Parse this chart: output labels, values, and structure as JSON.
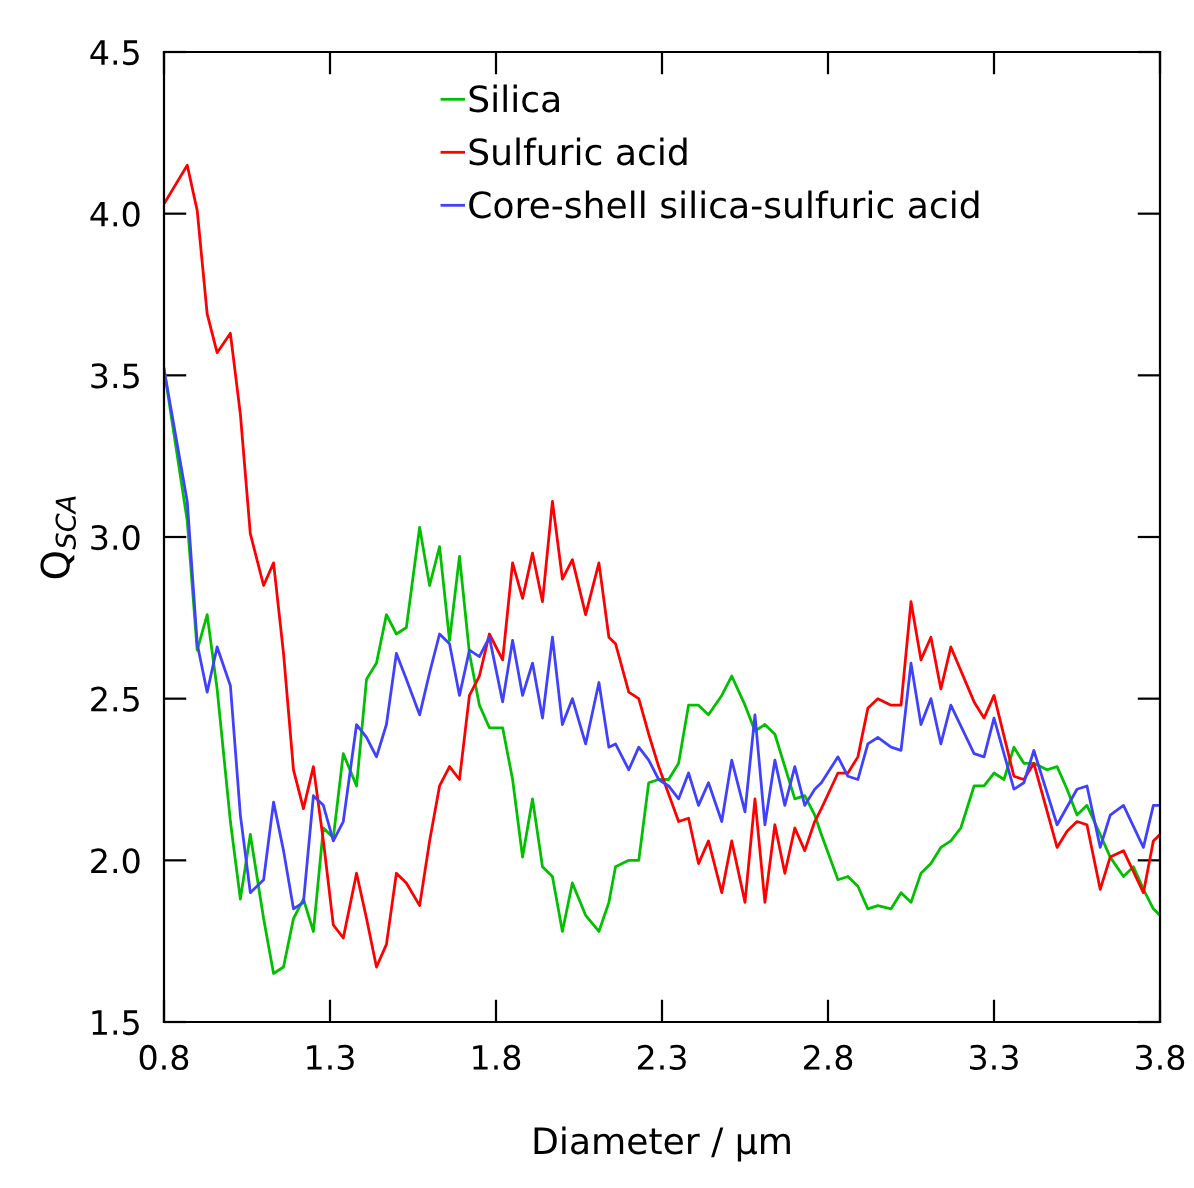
{
  "chart_data": {
    "type": "line",
    "xlabel": "Diameter / µm",
    "ylabel": "Q$_{SCA}$",
    "xlim": [
      0.8,
      3.8
    ],
    "xticks": [
      0.8,
      1.3,
      1.8,
      2.3,
      {
        "value": 2.8,
        "label": "2.8"
      },
      3.3,
      3.8
    ],
    "ylim": [
      1.5,
      4.5
    ],
    "yticks": [
      1.5,
      {
        "value": 2,
        "label": "2.0"
      },
      2.5,
      {
        "value": 3,
        "label": "3.0"
      },
      3.5,
      {
        "value": 4,
        "label": "4.0"
      },
      4.5
    ],
    "grid": false,
    "legend": "top",
    "marker": "none",
    "line_style": "solid",
    "series": [
      {
        "name": "Silica",
        "color": "#00c000",
        "x": [
          0.8,
          0.87,
          0.9,
          0.93,
          0.96,
          1.0,
          1.03,
          1.06,
          1.1,
          1.13,
          1.16,
          1.19,
          1.22,
          1.25,
          1.28,
          1.31,
          1.34,
          1.38,
          1.41,
          1.44,
          1.47,
          1.5,
          1.53,
          1.57,
          1.6,
          1.63,
          1.66,
          1.69,
          1.72,
          1.75,
          1.78,
          1.82,
          1.85,
          1.88,
          1.91,
          1.94,
          1.97,
          2.0,
          2.03,
          2.07,
          2.11,
          2.14,
          2.16,
          2.2,
          2.23,
          2.26,
          2.29,
          2.32,
          2.35,
          2.38,
          2.41,
          2.44,
          2.48,
          2.51,
          2.55,
          2.58,
          2.61,
          2.64,
          2.67,
          2.7,
          2.73,
          2.76,
          2.78,
          2.83,
          2.86,
          2.89,
          2.92,
          2.95,
          2.99,
          3.02,
          3.05,
          3.08,
          3.11,
          3.14,
          3.17,
          3.2,
          3.24,
          3.27,
          3.3,
          3.33,
          3.36,
          3.39,
          3.42,
          3.46,
          3.49,
          3.52,
          3.55,
          3.58,
          3.62,
          3.65,
          3.69,
          3.72,
          3.75,
          3.78,
          3.8
        ],
        "values": [
          3.52,
          3.05,
          2.65,
          2.76,
          2.53,
          2.12,
          1.88,
          2.08,
          1.82,
          1.65,
          1.67,
          1.82,
          1.88,
          1.78,
          2.1,
          2.07,
          2.33,
          2.23,
          2.56,
          2.61,
          2.76,
          2.7,
          2.72,
          3.03,
          2.85,
          2.97,
          2.68,
          2.94,
          2.64,
          2.48,
          2.41,
          2.41,
          2.25,
          2.01,
          2.19,
          1.98,
          1.95,
          1.78,
          1.93,
          1.83,
          1.78,
          1.87,
          1.98,
          2.0,
          2.0,
          2.24,
          2.25,
          2.25,
          2.3,
          2.48,
          2.48,
          2.45,
          2.51,
          2.57,
          2.48,
          2.4,
          2.42,
          2.39,
          2.29,
          2.19,
          2.2,
          2.14,
          2.08,
          1.94,
          1.95,
          1.92,
          1.85,
          1.86,
          1.85,
          1.9,
          1.87,
          1.96,
          1.99,
          2.04,
          2.06,
          2.1,
          2.23,
          2.23,
          2.27,
          2.25,
          2.35,
          2.3,
          2.3,
          2.28,
          2.29,
          2.22,
          2.14,
          2.17,
          2.08,
          2.01,
          1.95,
          1.98,
          1.91,
          1.85,
          1.83
        ]
      },
      {
        "name": "Sulfuric acid",
        "color": "#ff0000",
        "x": [
          0.8,
          0.87,
          0.9,
          0.93,
          0.96,
          1.0,
          1.03,
          1.06,
          1.1,
          1.13,
          1.16,
          1.19,
          1.22,
          1.25,
          1.28,
          1.31,
          1.34,
          1.38,
          1.41,
          1.44,
          1.47,
          1.5,
          1.53,
          1.57,
          1.6,
          1.63,
          1.66,
          1.69,
          1.72,
          1.75,
          1.78,
          1.82,
          1.85,
          1.88,
          1.91,
          1.94,
          1.97,
          2.0,
          2.03,
          2.07,
          2.11,
          2.14,
          2.16,
          2.2,
          2.23,
          2.26,
          2.29,
          2.35,
          2.38,
          2.41,
          2.44,
          2.48,
          2.51,
          2.55,
          2.58,
          2.61,
          2.64,
          2.67,
          2.7,
          2.73,
          2.76,
          2.78,
          2.83,
          2.86,
          2.89,
          2.92,
          2.95,
          2.99,
          3.02,
          3.05,
          3.08,
          3.11,
          3.14,
          3.17,
          3.24,
          3.27,
          3.3,
          3.36,
          3.39,
          3.42,
          3.49,
          3.52,
          3.55,
          3.58,
          3.62,
          3.65,
          3.69,
          3.75,
          3.78,
          3.8
        ],
        "values": [
          4.03,
          4.15,
          4.01,
          3.69,
          3.57,
          3.63,
          3.38,
          3.01,
          2.85,
          2.92,
          2.64,
          2.28,
          2.16,
          2.29,
          2.06,
          1.8,
          1.76,
          1.96,
          1.82,
          1.67,
          1.74,
          1.96,
          1.93,
          1.86,
          2.06,
          2.23,
          2.29,
          2.25,
          2.51,
          2.57,
          2.7,
          2.62,
          2.92,
          2.81,
          2.95,
          2.8,
          3.11,
          2.87,
          2.93,
          2.76,
          2.92,
          2.69,
          2.67,
          2.52,
          2.5,
          2.39,
          2.29,
          2.12,
          2.13,
          1.99,
          2.06,
          1.9,
          2.06,
          1.87,
          2.19,
          1.87,
          2.11,
          1.96,
          2.1,
          2.03,
          2.12,
          2.16,
          2.27,
          2.27,
          2.32,
          2.47,
          2.5,
          2.48,
          2.48,
          2.8,
          2.62,
          2.69,
          2.53,
          2.66,
          2.49,
          2.44,
          2.51,
          2.26,
          2.25,
          2.3,
          2.04,
          2.09,
          2.12,
          2.11,
          1.91,
          2.01,
          2.03,
          1.9,
          2.06,
          2.08
        ]
      },
      {
        "name": "Core-shell silica-sulfuric acid",
        "color": "#4040ff",
        "x": [
          0.8,
          0.87,
          0.9,
          0.93,
          0.96,
          1.0,
          1.03,
          1.06,
          1.1,
          1.13,
          1.16,
          1.19,
          1.22,
          1.25,
          1.28,
          1.31,
          1.34,
          1.38,
          1.41,
          1.44,
          1.47,
          1.5,
          1.53,
          1.57,
          1.6,
          1.63,
          1.66,
          1.69,
          1.72,
          1.75,
          1.78,
          1.82,
          1.85,
          1.88,
          1.91,
          1.94,
          1.97,
          2.0,
          2.03,
          2.07,
          2.11,
          2.14,
          2.16,
          2.2,
          2.23,
          2.26,
          2.29,
          2.32,
          2.35,
          2.38,
          2.41,
          2.44,
          2.48,
          2.51,
          2.55,
          2.58,
          2.61,
          2.64,
          2.67,
          2.7,
          2.73,
          2.76,
          2.78,
          2.83,
          2.86,
          2.89,
          2.92,
          2.95,
          2.99,
          3.02,
          3.05,
          3.08,
          3.11,
          3.14,
          3.17,
          3.24,
          3.27,
          3.3,
          3.36,
          3.39,
          3.42,
          3.49,
          3.55,
          3.58,
          3.62,
          3.65,
          3.69,
          3.75,
          3.78,
          3.8
        ],
        "values": [
          3.52,
          3.11,
          2.67,
          2.52,
          2.66,
          2.54,
          2.14,
          1.9,
          1.94,
          2.18,
          2.03,
          1.85,
          1.87,
          2.2,
          2.17,
          2.06,
          2.12,
          2.42,
          2.38,
          2.32,
          2.42,
          2.64,
          2.56,
          2.45,
          2.58,
          2.7,
          2.67,
          2.51,
          2.65,
          2.63,
          2.69,
          2.49,
          2.68,
          2.51,
          2.61,
          2.44,
          2.69,
          2.42,
          2.5,
          2.36,
          2.55,
          2.35,
          2.36,
          2.28,
          2.35,
          2.31,
          2.25,
          2.23,
          2.19,
          2.27,
          2.17,
          2.24,
          2.12,
          2.31,
          2.15,
          2.45,
          2.11,
          2.31,
          2.17,
          2.29,
          2.17,
          2.22,
          2.24,
          2.32,
          2.26,
          2.25,
          2.36,
          2.38,
          2.35,
          2.34,
          2.61,
          2.42,
          2.5,
          2.36,
          2.48,
          2.33,
          2.32,
          2.44,
          2.22,
          2.24,
          2.34,
          2.11,
          2.22,
          2.23,
          2.04,
          2.14,
          2.17,
          2.04,
          2.17,
          2.17
        ]
      }
    ]
  }
}
